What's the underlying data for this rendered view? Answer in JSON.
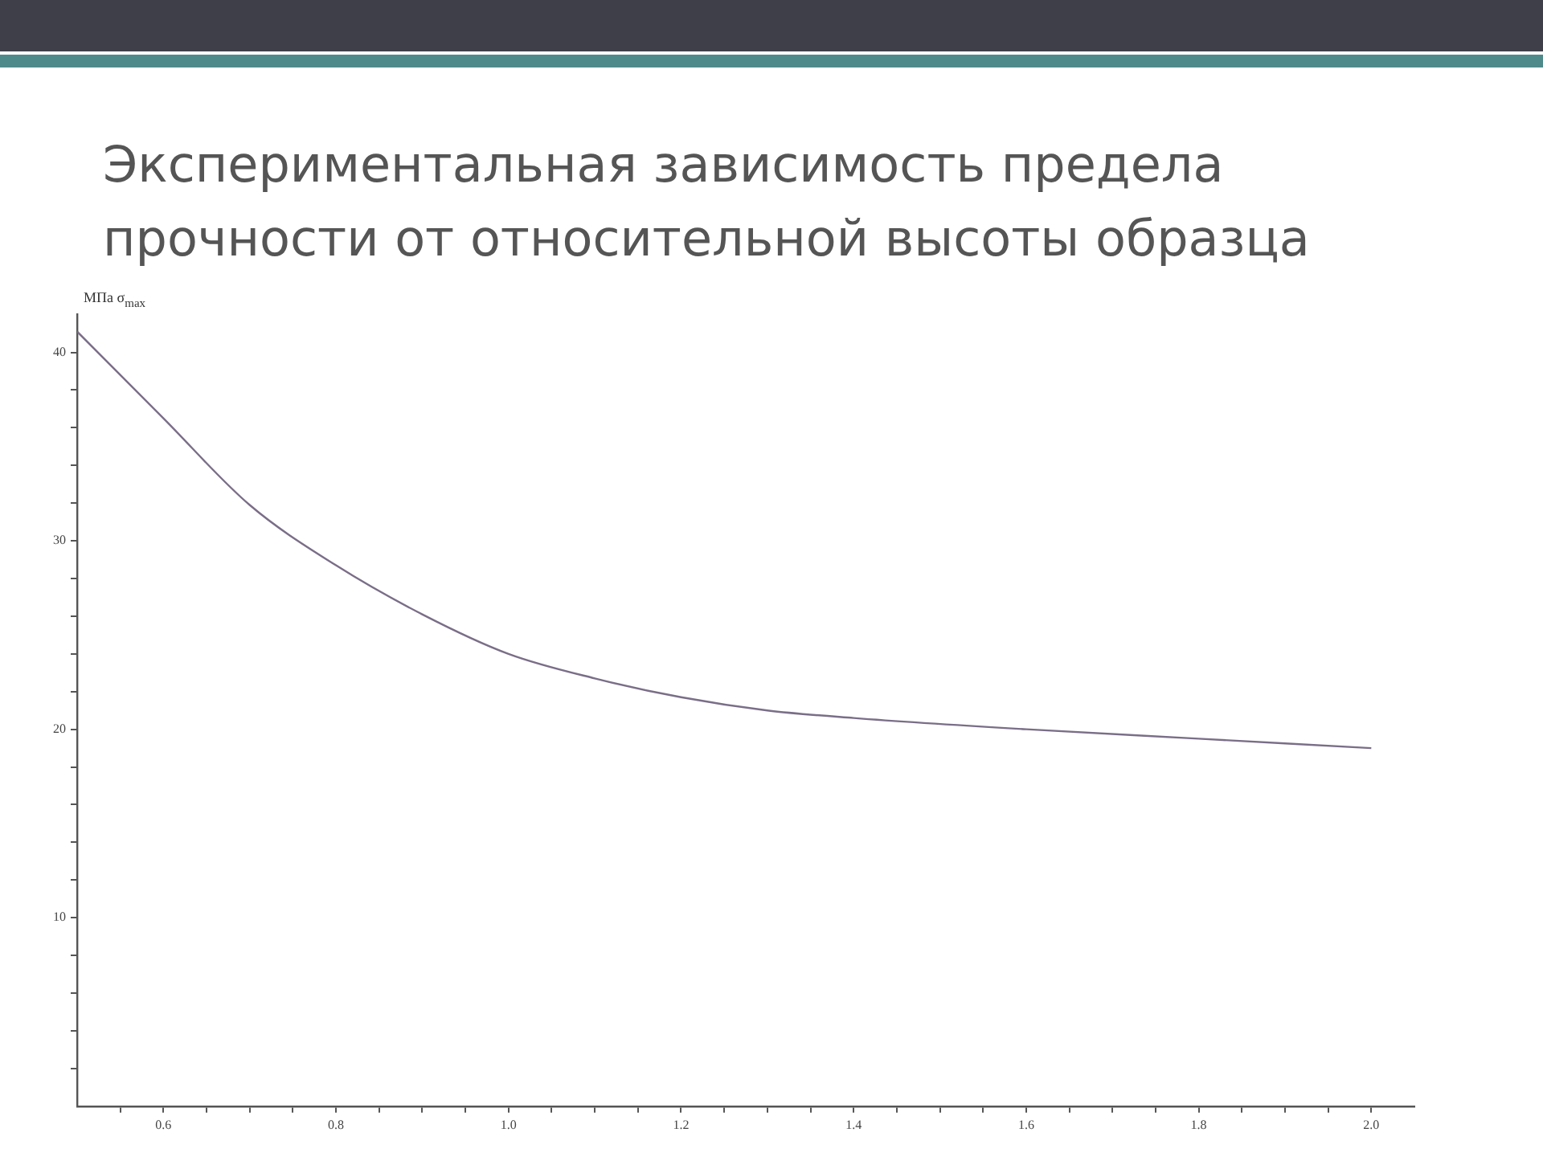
{
  "chart_data": {
    "type": "line",
    "title": "Экспериментальная зависимость предела прочности от относительной высоты образца",
    "ylabel": "МПа σ$_{max}$",
    "x": [
      0.5,
      0.6,
      0.7,
      0.8,
      0.9,
      1.0,
      1.1,
      1.2,
      1.3,
      1.4,
      1.6,
      1.8,
      2.0
    ],
    "series": [
      {
        "color": "#7a6e88",
        "values": [
          41.1,
          36.5,
          31.9,
          28.7,
          26.1,
          24.0,
          22.7,
          21.7,
          21.0,
          20.6,
          20.0,
          19.5,
          19.0
        ]
      }
    ],
    "xlim": [
      0.5,
      2.05
    ],
    "xticks": [
      {
        "value": 0.55,
        "label": null
      },
      0.6,
      {
        "value": 0.65,
        "label": null
      },
      {
        "value": 0.7,
        "label": null
      },
      {
        "value": 0.75,
        "label": null
      },
      0.8,
      {
        "value": 0.85,
        "label": null
      },
      {
        "value": 0.9,
        "label": null
      },
      {
        "value": 0.95,
        "label": null
      },
      {
        "value": 1.0,
        "label": "1.0"
      },
      {
        "value": 1.05,
        "label": null
      },
      {
        "value": 1.1,
        "label": null
      },
      {
        "value": 1.15,
        "label": null
      },
      1.2,
      {
        "value": 1.25,
        "label": null
      },
      {
        "value": 1.3,
        "label": null
      },
      {
        "value": 1.35,
        "label": null
      },
      1.4,
      {
        "value": 1.45,
        "label": null
      },
      {
        "value": 1.5,
        "label": null
      },
      {
        "value": 1.55,
        "label": null
      },
      1.6,
      {
        "value": 1.65,
        "label": null
      },
      {
        "value": 1.7,
        "label": null
      },
      {
        "value": 1.75,
        "label": null
      },
      1.8,
      {
        "value": 1.85,
        "label": null
      },
      {
        "value": 1.9,
        "label": null
      },
      {
        "value": 1.95,
        "label": null
      },
      {
        "value": 2.0,
        "label": "2.0"
      }
    ],
    "ylim": [
      0,
      42
    ],
    "yticks": [
      {
        "value": 2,
        "label": null
      },
      {
        "value": 4,
        "label": null
      },
      {
        "value": 6,
        "label": null
      },
      {
        "value": 8,
        "label": null
      },
      10,
      {
        "value": 12,
        "label": null
      },
      {
        "value": 14,
        "label": null
      },
      {
        "value": 16,
        "label": null
      },
      {
        "value": 18,
        "label": null
      },
      20,
      {
        "value": 22,
        "label": null
      },
      {
        "value": 24,
        "label": null
      },
      {
        "value": 26,
        "label": null
      },
      {
        "value": 28,
        "label": null
      },
      30,
      {
        "value": 32,
        "label": null
      },
      {
        "value": 34,
        "label": null
      },
      {
        "value": 36,
        "label": null
      },
      {
        "value": 38,
        "label": null
      },
      40
    ],
    "grid": false,
    "legend": false,
    "marker": "none",
    "line_style": "solid"
  }
}
